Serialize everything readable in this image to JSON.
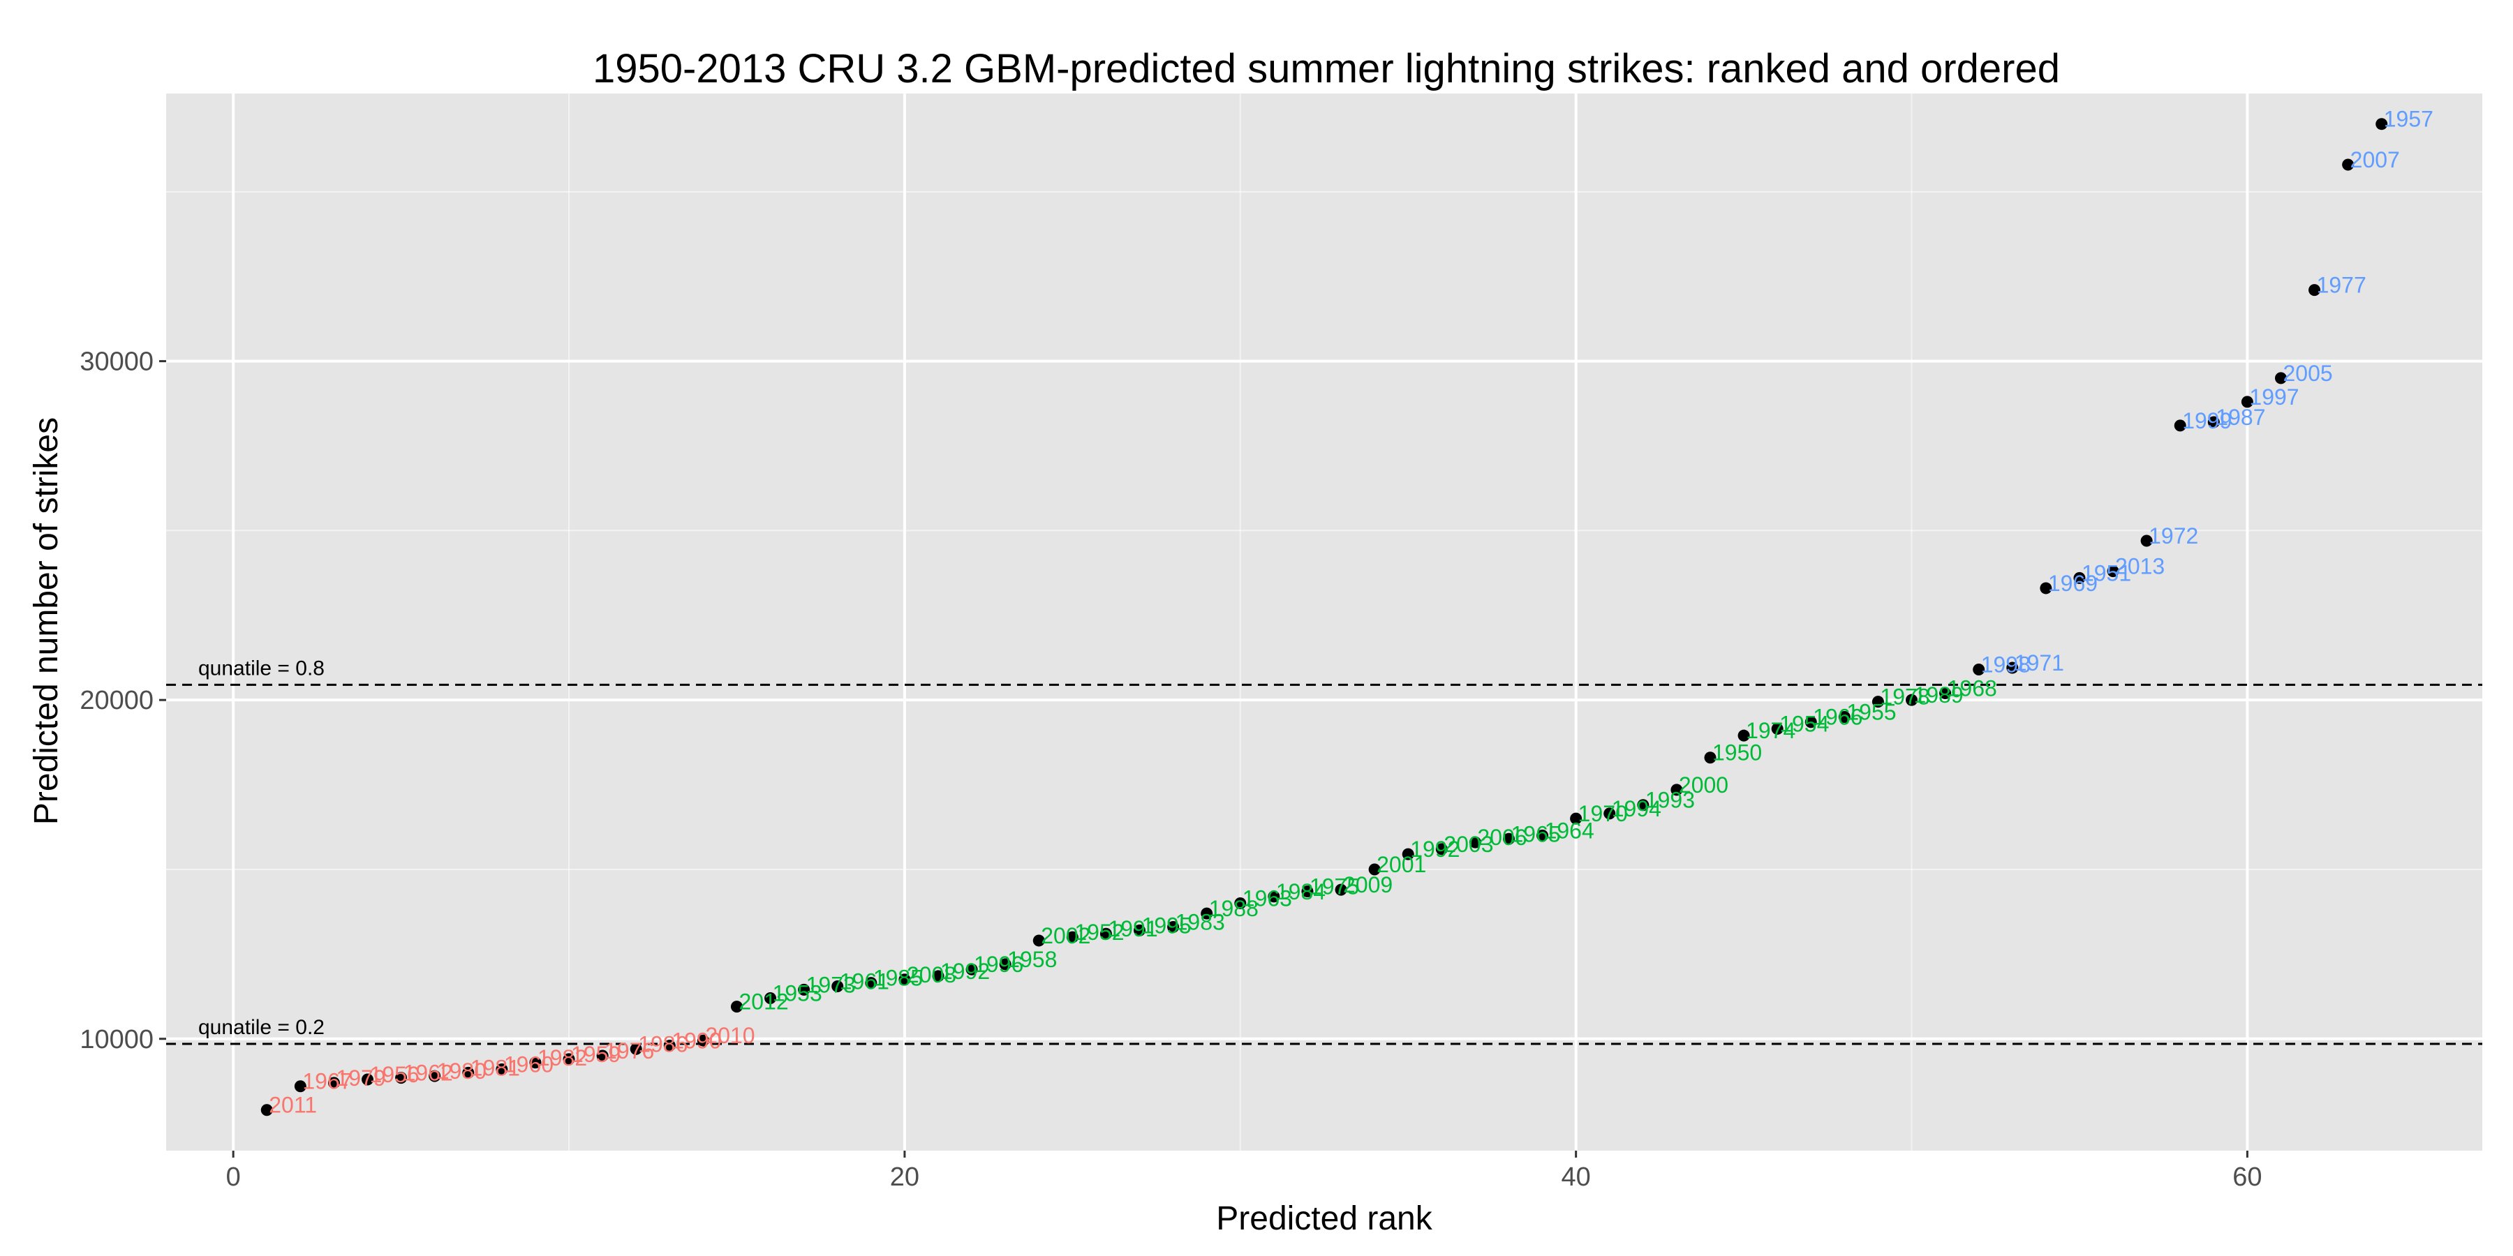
{
  "chart_data": {
    "type": "scatter",
    "title": "1950-2013 CRU 3.2 GBM-predicted summer lightning strikes: ranked and ordered",
    "xlabel": "Predicted rank",
    "ylabel": "Predicted number of strikes",
    "xlim": [
      -2,
      67
    ],
    "ylim": [
      6700,
      37900
    ],
    "x_ticks": [
      0,
      20,
      40,
      60
    ],
    "y_ticks": [
      10000,
      20000,
      30000
    ],
    "grid": true,
    "colors": {
      "low": "#F8766D",
      "mid": "#00BA38",
      "high": "#619CFF",
      "point": "#000000",
      "panel": "#E5E5E5",
      "grid": "#FFFFFF"
    },
    "reference_lines": [
      {
        "label": "qunatile = 0.2",
        "y": 9850
      },
      {
        "label": "qunatile = 0.8",
        "y": 20450
      }
    ],
    "points": [
      {
        "rank": 1,
        "value": 7900,
        "year": "2011",
        "group": "low"
      },
      {
        "rank": 2,
        "value": 8600,
        "year": "1967",
        "group": "low"
      },
      {
        "rank": 3,
        "value": 8700,
        "year": "1979",
        "group": "low"
      },
      {
        "rank": 4,
        "value": 8800,
        "year": "1956",
        "group": "low"
      },
      {
        "rank": 5,
        "value": 8850,
        "year": "1962",
        "group": "low"
      },
      {
        "rank": 6,
        "value": 8900,
        "year": "1980",
        "group": "low"
      },
      {
        "rank": 7,
        "value": 9000,
        "year": "1981",
        "group": "low"
      },
      {
        "rank": 8,
        "value": 9100,
        "year": "1960",
        "group": "low"
      },
      {
        "rank": 9,
        "value": 9300,
        "year": "1982",
        "group": "low"
      },
      {
        "rank": 10,
        "value": 9400,
        "year": "1959",
        "group": "low"
      },
      {
        "rank": 11,
        "value": 9500,
        "year": "1976",
        "group": "low"
      },
      {
        "rank": 12,
        "value": 9700,
        "year": "1986",
        "group": "low"
      },
      {
        "rank": 13,
        "value": 9800,
        "year": "1990",
        "group": "low"
      },
      {
        "rank": 14,
        "value": 9950,
        "year": "2010",
        "group": "low"
      },
      {
        "rank": 15,
        "value": 10950,
        "year": "2012",
        "group": "mid"
      },
      {
        "rank": 16,
        "value": 11200,
        "year": "1953",
        "group": "mid"
      },
      {
        "rank": 17,
        "value": 11450,
        "year": "1973",
        "group": "mid"
      },
      {
        "rank": 18,
        "value": 11550,
        "year": "1961",
        "group": "mid"
      },
      {
        "rank": 19,
        "value": 11650,
        "year": "1985",
        "group": "mid"
      },
      {
        "rank": 20,
        "value": 11750,
        "year": "2008",
        "group": "mid"
      },
      {
        "rank": 21,
        "value": 11850,
        "year": "1992",
        "group": "mid"
      },
      {
        "rank": 22,
        "value": 12050,
        "year": "1996",
        "group": "mid"
      },
      {
        "rank": 23,
        "value": 12200,
        "year": "1958",
        "group": "mid"
      },
      {
        "rank": 24,
        "value": 12900,
        "year": "2002",
        "group": "mid"
      },
      {
        "rank": 25,
        "value": 13000,
        "year": "1952",
        "group": "mid"
      },
      {
        "rank": 26,
        "value": 13100,
        "year": "1991",
        "group": "mid"
      },
      {
        "rank": 27,
        "value": 13200,
        "year": "1995",
        "group": "mid"
      },
      {
        "rank": 28,
        "value": 13300,
        "year": "1983",
        "group": "mid"
      },
      {
        "rank": 29,
        "value": 13700,
        "year": "1988",
        "group": "mid"
      },
      {
        "rank": 30,
        "value": 14000,
        "year": "1963",
        "group": "mid"
      },
      {
        "rank": 31,
        "value": 14200,
        "year": "1984",
        "group": "mid"
      },
      {
        "rank": 32,
        "value": 14350,
        "year": "1975",
        "group": "mid"
      },
      {
        "rank": 33,
        "value": 14400,
        "year": "2009",
        "group": "mid"
      },
      {
        "rank": 34,
        "value": 15000,
        "year": "2001",
        "group": "mid"
      },
      {
        "rank": 35,
        "value": 15450,
        "year": "1992",
        "group": "mid"
      },
      {
        "rank": 36,
        "value": 15600,
        "year": "2003",
        "group": "mid"
      },
      {
        "rank": 37,
        "value": 15800,
        "year": "2006",
        "group": "mid"
      },
      {
        "rank": 38,
        "value": 15900,
        "year": "1965",
        "group": "mid"
      },
      {
        "rank": 39,
        "value": 16000,
        "year": "1964",
        "group": "mid"
      },
      {
        "rank": 40,
        "value": 16500,
        "year": "1970",
        "group": "mid"
      },
      {
        "rank": 41,
        "value": 16650,
        "year": "1994",
        "group": "mid"
      },
      {
        "rank": 42,
        "value": 16900,
        "year": "1993",
        "group": "mid"
      },
      {
        "rank": 43,
        "value": 17350,
        "year": "2000",
        "group": "mid"
      },
      {
        "rank": 44,
        "value": 18300,
        "year": "1950",
        "group": "mid"
      },
      {
        "rank": 45,
        "value": 18950,
        "year": "1974",
        "group": "mid"
      },
      {
        "rank": 46,
        "value": 19150,
        "year": "1954",
        "group": "mid"
      },
      {
        "rank": 47,
        "value": 19350,
        "year": "1966",
        "group": "mid"
      },
      {
        "rank": 48,
        "value": 19500,
        "year": "1955",
        "group": "mid"
      },
      {
        "rank": 49,
        "value": 19950,
        "year": "1978",
        "group": "mid"
      },
      {
        "rank": 50,
        "value": 20000,
        "year": "1989",
        "group": "mid"
      },
      {
        "rank": 51,
        "value": 20200,
        "year": "1968",
        "group": "mid"
      },
      {
        "rank": 52,
        "value": 20900,
        "year": "1998",
        "group": "high"
      },
      {
        "rank": 53,
        "value": 20950,
        "year": "1971",
        "group": "high"
      },
      {
        "rank": 54,
        "value": 23300,
        "year": "1969",
        "group": "high"
      },
      {
        "rank": 55,
        "value": 23600,
        "year": "1951",
        "group": "high"
      },
      {
        "rank": 56,
        "value": 23800,
        "year": "2013",
        "group": "high"
      },
      {
        "rank": 57,
        "value": 24700,
        "year": "1972",
        "group": "high"
      },
      {
        "rank": 58,
        "value": 28100,
        "year": "1999",
        "group": "high"
      },
      {
        "rank": 59,
        "value": 28200,
        "year": "1987",
        "group": "high"
      },
      {
        "rank": 60,
        "value": 28800,
        "year": "1997",
        "group": "high"
      },
      {
        "rank": 61,
        "value": 29500,
        "year": "2005",
        "group": "high"
      },
      {
        "rank": 62,
        "value": 32100,
        "year": "1977",
        "group": "high"
      },
      {
        "rank": 63,
        "value": 35800,
        "year": "2007",
        "group": "high"
      },
      {
        "rank": 64,
        "value": 37000,
        "year": "1957",
        "group": "high"
      }
    ]
  }
}
